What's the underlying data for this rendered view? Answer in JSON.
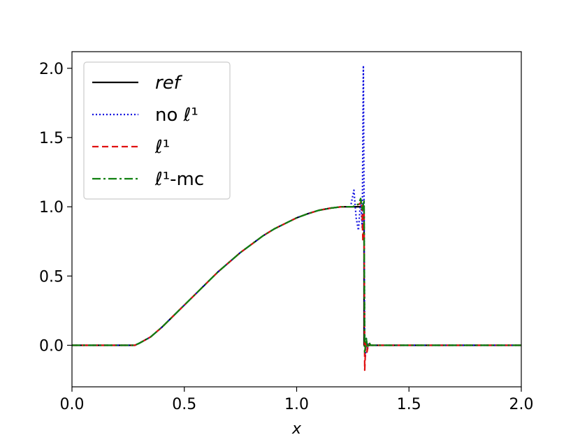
{
  "chart_data": {
    "type": "line",
    "title": "",
    "xlabel": "x",
    "ylabel": "",
    "xlim": [
      0.0,
      2.0
    ],
    "ylim": [
      -0.3,
      2.12
    ],
    "xticks": [
      "0.0",
      "0.5",
      "1.0",
      "1.5",
      "2.0"
    ],
    "yticks": [
      "0.0",
      "0.5",
      "1.0",
      "1.5",
      "2.0"
    ],
    "grid": false,
    "legend_position": "top-left",
    "series": [
      {
        "name": "ref",
        "name_style": "italic",
        "color": "#000000",
        "dash": "solid",
        "x": [
          0.0,
          0.28,
          0.3,
          0.35,
          0.4,
          0.45,
          0.5,
          0.55,
          0.6,
          0.65,
          0.7,
          0.75,
          0.8,
          0.85,
          0.9,
          0.95,
          1.0,
          1.05,
          1.1,
          1.15,
          1.2,
          1.25,
          1.29,
          1.3,
          1.3,
          1.35,
          1.5,
          2.0
        ],
        "y": [
          0.0,
          0.0,
          0.015,
          0.06,
          0.13,
          0.21,
          0.29,
          0.37,
          0.45,
          0.53,
          0.6,
          0.67,
          0.73,
          0.79,
          0.84,
          0.88,
          0.92,
          0.95,
          0.975,
          0.99,
          1.0,
          1.0,
          1.0,
          1.0,
          0.0,
          0.0,
          0.0,
          0.0
        ]
      },
      {
        "name": "no ℓ¹",
        "name_style": "normal",
        "color": "#1010e0",
        "dash": "dotted",
        "x": [
          0.0,
          0.28,
          0.3,
          0.35,
          0.4,
          0.45,
          0.5,
          0.55,
          0.6,
          0.65,
          0.7,
          0.75,
          0.8,
          0.85,
          0.9,
          0.95,
          1.0,
          1.05,
          1.1,
          1.15,
          1.2,
          1.24,
          1.255,
          1.265,
          1.275,
          1.285,
          1.292,
          1.297,
          1.3,
          1.303,
          1.306,
          1.31,
          1.315,
          1.32,
          1.33,
          1.35,
          1.5,
          2.0
        ],
        "y": [
          0.0,
          0.0,
          0.015,
          0.06,
          0.13,
          0.21,
          0.29,
          0.37,
          0.45,
          0.53,
          0.6,
          0.67,
          0.73,
          0.79,
          0.84,
          0.88,
          0.92,
          0.95,
          0.975,
          0.99,
          1.0,
          1.0,
          1.12,
          0.92,
          0.83,
          1.05,
          0.85,
          2.02,
          1.05,
          0.1,
          -0.08,
          0.05,
          -0.02,
          0.02,
          0.0,
          0.0,
          0.0,
          0.0
        ]
      },
      {
        "name": "ℓ¹",
        "name_style": "normal",
        "color": "#e01010",
        "dash": "dashed",
        "x": [
          0.0,
          0.28,
          0.3,
          0.35,
          0.4,
          0.45,
          0.5,
          0.55,
          0.6,
          0.65,
          0.7,
          0.75,
          0.8,
          0.85,
          0.9,
          0.95,
          1.0,
          1.05,
          1.1,
          1.15,
          1.2,
          1.25,
          1.28,
          1.29,
          1.295,
          1.3,
          1.303,
          1.308,
          1.313,
          1.32,
          1.33,
          1.35,
          1.5,
          2.0
        ],
        "y": [
          0.0,
          0.0,
          0.015,
          0.06,
          0.13,
          0.21,
          0.29,
          0.37,
          0.45,
          0.53,
          0.6,
          0.67,
          0.73,
          0.79,
          0.84,
          0.88,
          0.92,
          0.95,
          0.975,
          0.99,
          1.0,
          1.0,
          1.02,
          1.04,
          0.75,
          1.0,
          -0.18,
          0.03,
          -0.05,
          0.01,
          0.0,
          0.0,
          0.0,
          0.0
        ]
      },
      {
        "name": "ℓ¹-mc",
        "name_style": "normal",
        "color": "#108010",
        "dash": "dashdot",
        "x": [
          0.0,
          0.28,
          0.3,
          0.35,
          0.4,
          0.45,
          0.5,
          0.55,
          0.6,
          0.65,
          0.7,
          0.75,
          0.8,
          0.85,
          0.9,
          0.95,
          1.0,
          1.05,
          1.1,
          1.15,
          1.2,
          1.25,
          1.275,
          1.285,
          1.293,
          1.3,
          1.303,
          1.31,
          1.315,
          1.322,
          1.33,
          1.35,
          1.5,
          2.0
        ],
        "y": [
          0.0,
          0.0,
          0.015,
          0.06,
          0.13,
          0.21,
          0.29,
          0.37,
          0.45,
          0.53,
          0.6,
          0.67,
          0.73,
          0.79,
          0.84,
          0.88,
          0.92,
          0.95,
          0.975,
          0.99,
          1.0,
          1.0,
          1.02,
          1.06,
          0.97,
          1.05,
          -0.05,
          0.05,
          -0.02,
          0.02,
          0.0,
          0.0,
          0.0,
          0.0
        ]
      }
    ]
  }
}
